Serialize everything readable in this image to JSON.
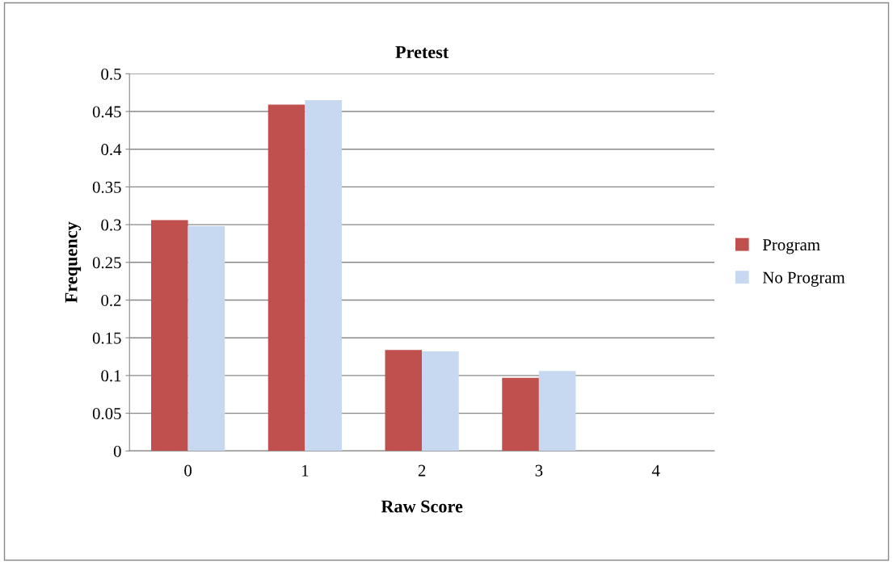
{
  "chart_data": {
    "type": "bar",
    "title": "Pretest",
    "xlabel": "Raw Score",
    "ylabel": "Frequency",
    "categories": [
      "0",
      "1",
      "2",
      "3",
      "4"
    ],
    "series": [
      {
        "name": "Program",
        "color": "#c0504d",
        "values": [
          0.306,
          0.459,
          0.134,
          0.097,
          0
        ]
      },
      {
        "name": "No Program",
        "color": "#c6d9f1",
        "values": [
          0.298,
          0.465,
          0.132,
          0.106,
          0
        ]
      }
    ],
    "ylim": [
      0,
      0.5
    ],
    "yticks": [
      0,
      0.05,
      0.1,
      0.15,
      0.2,
      0.25,
      0.3,
      0.35,
      0.4,
      0.45,
      0.5
    ],
    "grid": "y",
    "legend": "right"
  }
}
